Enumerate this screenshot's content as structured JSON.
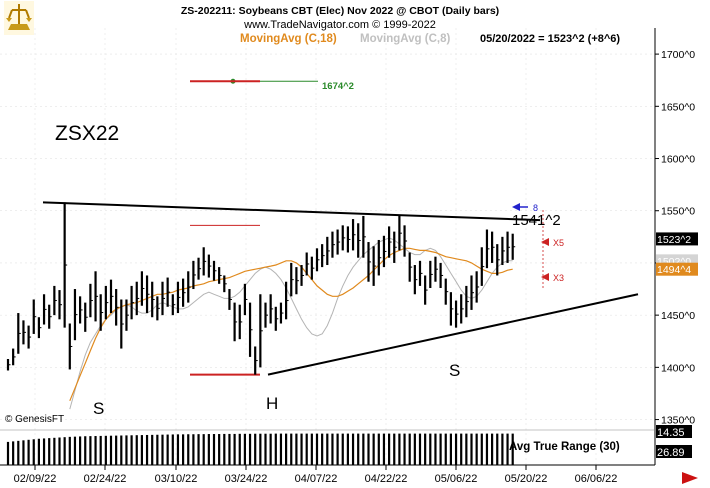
{
  "header": {
    "title": "ZS-202211:  Soybeans CBT (Elec) Nov 2022 @ CBOT  (Daily bars)",
    "copyright": "www.TradeNavigator.com © 1999-2022",
    "ma18_label": "MovingAvg (C,18)",
    "ma8_label": "MovingAvg (C,8)",
    "quote": "05/20/2022 = 1523^2 (+8^6)"
  },
  "annotations": {
    "symbol": "ZSX22",
    "target_label": "1674^2",
    "neckline_label": "1541^2",
    "left_shoulder": "S",
    "head": "H",
    "right_shoulder": "S",
    "watermark": "© GenesisFT",
    "marker_x5": "X5",
    "marker_x3": "X3",
    "marker_top": "8"
  },
  "price_tags": {
    "last": "1523^2",
    "ma8": "1502^0",
    "ma18": "1494^4"
  },
  "atr": {
    "label": "Avg True Range (30)",
    "value_top": "14.35",
    "value_bottom": "26.89"
  },
  "colors": {
    "ma18": "#e08a1e",
    "ma8": "#b4b4b4",
    "target": "#2a8a2a",
    "stop": "#cc2222",
    "marker": "#2222cc",
    "tag_last": "#000000",
    "tag_ma8": "#c8c8c8",
    "tag_ma18": "#e08a1e"
  },
  "chart_data": {
    "type": "ohlc",
    "y_ticks": [
      "1350^0",
      "1400^0",
      "1450^0",
      "1500^0",
      "1550^0",
      "1600^0",
      "1650^0",
      "1700^0"
    ],
    "y_range": [
      1340,
      1725
    ],
    "x_ticks": [
      "02/09/22",
      "02/24/22",
      "03/10/22",
      "03/24/22",
      "04/07/22",
      "04/22/22",
      "05/06/22",
      "05/20/22",
      "06/06/22"
    ],
    "bars": [
      [
        1408,
        1397
      ],
      [
        1418,
        1402
      ],
      [
        1452,
        1413
      ],
      [
        1445,
        1422
      ],
      [
        1440,
        1418
      ],
      [
        1465,
        1432
      ],
      [
        1448,
        1428
      ],
      [
        1470,
        1441
      ],
      [
        1460,
        1437
      ],
      [
        1478,
        1450
      ],
      [
        1474,
        1446
      ],
      [
        1558,
        1438
      ],
      [
        1442,
        1398
      ],
      [
        1475,
        1426
      ],
      [
        1468,
        1442
      ],
      [
        1462,
        1434
      ],
      [
        1480,
        1448
      ],
      [
        1492,
        1444
      ],
      [
        1470,
        1435
      ],
      [
        1478,
        1446
      ],
      [
        1484,
        1452
      ],
      [
        1475,
        1440
      ],
      [
        1465,
        1418
      ],
      [
        1465,
        1435
      ],
      [
        1478,
        1446
      ],
      [
        1482,
        1450
      ],
      [
        1492,
        1459
      ],
      [
        1488,
        1452
      ],
      [
        1482,
        1448
      ],
      [
        1468,
        1445
      ],
      [
        1482,
        1450
      ],
      [
        1486,
        1458
      ],
      [
        1470,
        1450
      ],
      [
        1482,
        1452
      ],
      [
        1485,
        1458
      ],
      [
        1492,
        1462
      ],
      [
        1502,
        1475
      ],
      [
        1505,
        1484
      ],
      [
        1515,
        1488
      ],
      [
        1508,
        1486
      ],
      [
        1502,
        1483
      ],
      [
        1496,
        1480
      ],
      [
        1488,
        1472
      ],
      [
        1475,
        1455
      ],
      [
        1462,
        1425
      ],
      [
        1460,
        1427
      ],
      [
        1480,
        1450
      ],
      [
        1462,
        1410
      ],
      [
        1420,
        1393
      ],
      [
        1470,
        1400
      ],
      [
        1462,
        1438
      ],
      [
        1470,
        1442
      ],
      [
        1458,
        1435
      ],
      [
        1462,
        1442
      ],
      [
        1482,
        1446
      ],
      [
        1500,
        1468
      ],
      [
        1496,
        1470
      ],
      [
        1498,
        1478
      ],
      [
        1510,
        1488
      ],
      [
        1506,
        1484
      ],
      [
        1514,
        1492
      ],
      [
        1518,
        1496
      ],
      [
        1525,
        1498
      ],
      [
        1530,
        1505
      ],
      [
        1532,
        1508
      ],
      [
        1536,
        1512
      ],
      [
        1535,
        1510
      ],
      [
        1542,
        1512
      ],
      [
        1538,
        1505
      ],
      [
        1545,
        1505
      ],
      [
        1520,
        1482
      ],
      [
        1516,
        1478
      ],
      [
        1522,
        1488
      ],
      [
        1526,
        1496
      ],
      [
        1535,
        1505
      ],
      [
        1530,
        1500
      ],
      [
        1545,
        1512
      ],
      [
        1536,
        1506
      ],
      [
        1510,
        1482
      ],
      [
        1498,
        1470
      ],
      [
        1502,
        1478
      ],
      [
        1488,
        1460
      ],
      [
        1502,
        1476
      ],
      [
        1506,
        1482
      ],
      [
        1500,
        1476
      ],
      [
        1485,
        1460
      ],
      [
        1472,
        1440
      ],
      [
        1464,
        1438
      ],
      [
        1470,
        1442
      ],
      [
        1478,
        1448
      ],
      [
        1488,
        1455
      ],
      [
        1492,
        1462
      ],
      [
        1515,
        1478
      ],
      [
        1532,
        1495
      ],
      [
        1530,
        1500
      ],
      [
        1518,
        1488
      ],
      [
        1525,
        1498
      ],
      [
        1530,
        1500
      ],
      [
        1528,
        1503
      ]
    ],
    "ma18": [
      1368,
      1380,
      1392,
      1404,
      1416,
      1428,
      1438,
      1446,
      1452,
      1456,
      1458,
      1460,
      1461,
      1462,
      1464,
      1466,
      1468,
      1470,
      1470,
      1471,
      1472,
      1474,
      1475,
      1476,
      1478,
      1479,
      1480,
      1482,
      1483,
      1484,
      1485,
      1486,
      1488,
      1490,
      1492,
      1493,
      1494,
      1495,
      1496,
      1497,
      1498,
      1500,
      1502,
      1502,
      1500,
      1496,
      1490,
      1484,
      1478,
      1474,
      1470,
      1468,
      1468,
      1470,
      1473,
      1476,
      1480,
      1484,
      1488,
      1493,
      1498,
      1503,
      1507,
      1510,
      1512,
      1514,
      1514,
      1513,
      1512,
      1512,
      1511,
      1510,
      1508,
      1506,
      1505,
      1504,
      1503,
      1502,
      1500,
      1497,
      1494,
      1492,
      1490,
      1490,
      1491,
      1493,
      1494
    ],
    "ma8": [
      1360,
      1378,
      1396,
      1412,
      1424,
      1432,
      1440,
      1446,
      1450,
      1455,
      1458,
      1460,
      1458,
      1454,
      1452,
      1452,
      1455,
      1460,
      1462,
      1460,
      1458,
      1456,
      1456,
      1458,
      1462,
      1466,
      1470,
      1472,
      1470,
      1468,
      1466,
      1466,
      1468,
      1472,
      1478,
      1484,
      1490,
      1494,
      1496,
      1494,
      1490,
      1484,
      1476,
      1466,
      1456,
      1446,
      1438,
      1432,
      1430,
      1432,
      1440,
      1452,
      1466,
      1478,
      1488,
      1496,
      1502,
      1508,
      1512,
      1516,
      1520,
      1522,
      1524,
      1522,
      1518,
      1514,
      1510,
      1508,
      1508,
      1512,
      1514,
      1512,
      1506,
      1498,
      1490,
      1482,
      1474,
      1468,
      1466,
      1468,
      1474,
      1482,
      1490,
      1496,
      1500,
      1502,
      1502
    ],
    "atr_values": [
      22,
      22.5,
      23,
      23.5,
      24,
      24.5,
      25,
      25.3,
      25.6,
      25.9,
      26.2,
      26.5,
      26.8,
      27,
      27.2,
      27.4,
      27.5,
      27.6,
      27.7,
      27.8,
      27.9,
      28,
      28.1,
      28.2,
      28.3,
      28.4,
      28.5,
      28.6,
      28.7,
      28.8,
      28.9,
      29,
      29.1,
      29.2,
      29.2,
      29.3,
      29.3,
      29.4,
      29.4,
      29.5,
      29.5,
      29.5,
      29.6,
      29.6,
      29.6,
      29.7,
      29.7,
      29.7,
      29.8,
      29.8,
      29.8,
      29.8,
      29.9,
      29.9,
      29.9,
      29.9,
      29.9,
      29.9,
      29.9,
      29.9,
      29.9,
      29.9,
      29.9,
      29.9,
      29.9,
      29.9,
      29.9,
      29.9,
      29.9,
      29.9,
      29.9,
      29.9,
      29.9,
      29.9,
      29.9,
      29.9,
      29.9,
      29.9,
      29.9,
      29.9,
      29.9,
      29.9,
      29.9,
      29.9,
      29.9,
      29.9,
      29.9,
      29.9,
      29.9,
      29.9,
      29.9,
      29.9,
      29.9,
      29.9,
      29.9,
      29.9,
      29.9,
      29.9,
      29.9
    ],
    "neckline": [
      1558,
      1541
    ],
    "support_line": [
      1393,
      1470
    ],
    "target_level": 1674,
    "stop_levels": [
      1674,
      1536,
      1393
    ],
    "price_tag_values": [
      1523,
      1502,
      1494
    ]
  }
}
